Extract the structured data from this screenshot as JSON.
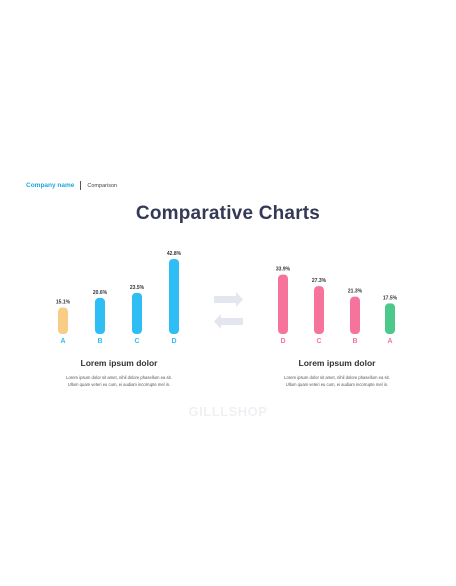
{
  "header": {
    "company": "Company name",
    "section": "Comparison"
  },
  "title": "Comparative Charts",
  "chart_data": [
    {
      "type": "bar",
      "categories": [
        "A",
        "B",
        "C",
        "D"
      ],
      "values": [
        15.1,
        20.6,
        23.5,
        42.8
      ],
      "value_labels": [
        "15.1%",
        "20.6%",
        "23.5%",
        "42.8%"
      ],
      "colors": [
        "#f9cd85",
        "#2fbdf5",
        "#2fbdf5",
        "#2fbdf5"
      ],
      "label_color": "#2fbdf5",
      "ylim": [
        0,
        42.8
      ]
    },
    {
      "type": "bar",
      "categories": [
        "D",
        "C",
        "B",
        "A"
      ],
      "values": [
        33.9,
        27.3,
        21.3,
        17.5
      ],
      "value_labels": [
        "33.9%",
        "27.3%",
        "21.3%",
        "17.5%"
      ],
      "colors": [
        "#f6739b",
        "#f6739b",
        "#f6739b",
        "#4cc98a"
      ],
      "label_color": "#f6739b",
      "ylim": [
        0,
        42.8
      ]
    }
  ],
  "captions": [
    {
      "heading": "Lorem ipsum dolor",
      "line1": "Lorem ipsum dolor sit amet, nihil dolore phasellum ea sit.",
      "line2": "Ullum quam veteri eu cum, ei audiam incorrupte mel in."
    },
    {
      "heading": "Lorem ipsum dolor",
      "line1": "Lorem ipsum dolor sit amet, nihil dolore phasellum ea sit.",
      "line2": "Ullum quam veteri eu cum, ei audiam incorrupte mel in."
    }
  ],
  "watermark": "GILLLSHOP",
  "arrow_color": "#e3e6ef"
}
